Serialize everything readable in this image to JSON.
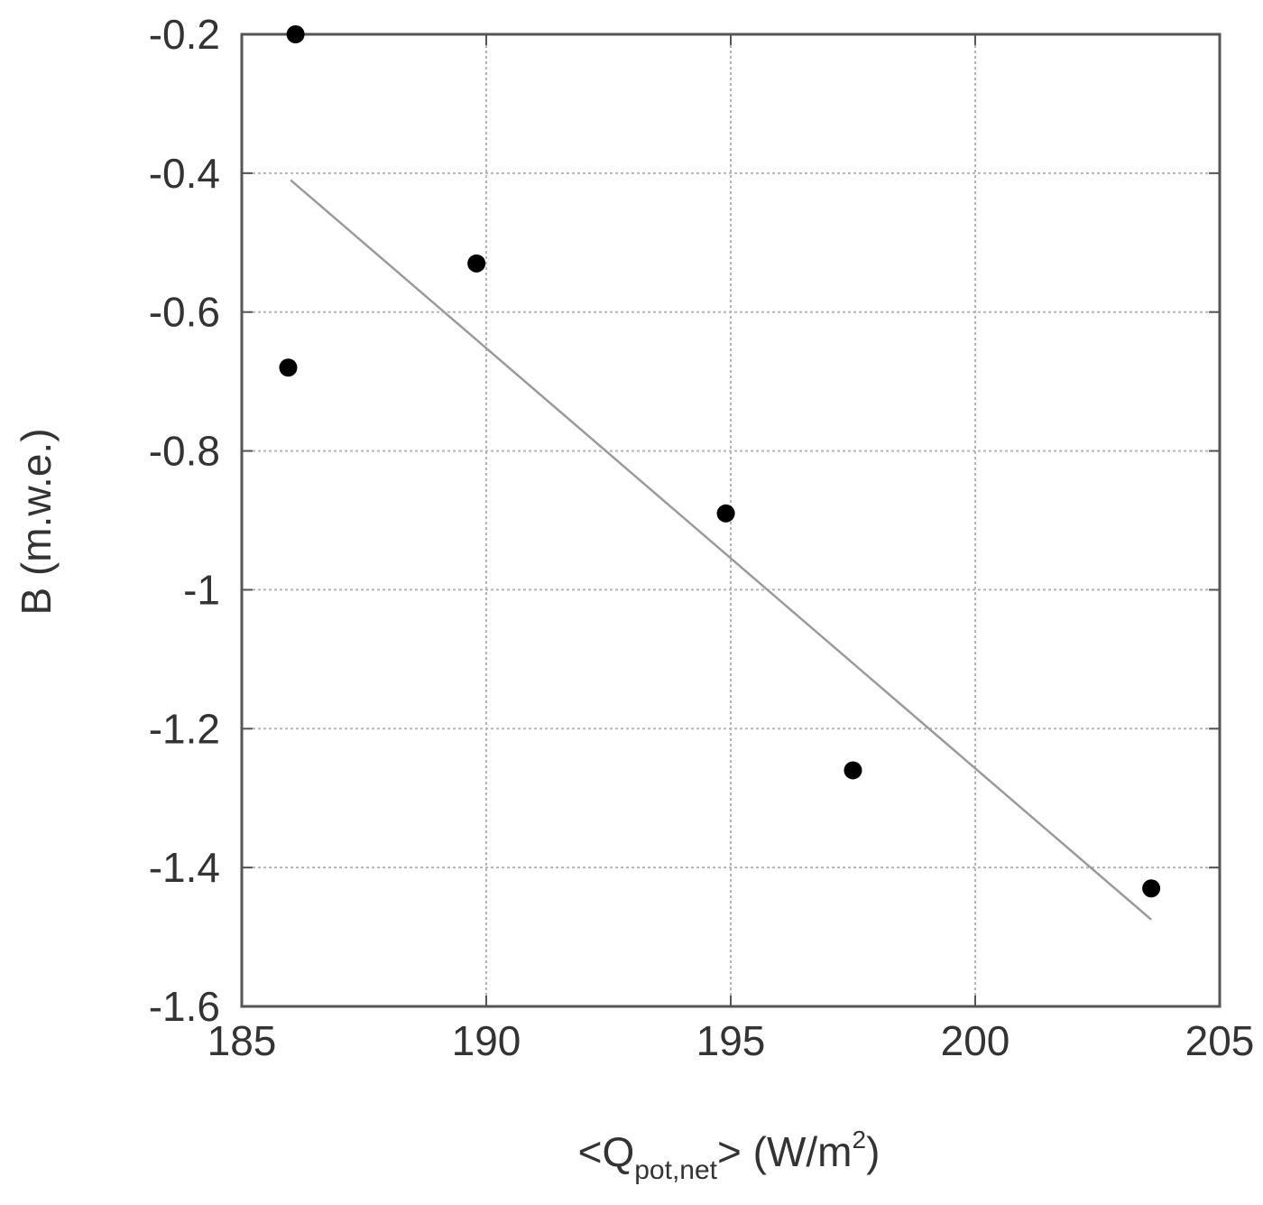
{
  "chart_data": {
    "type": "scatter",
    "title": "",
    "xlabel": {
      "prefix": "<Q",
      "subscript": "pot,net",
      "suffix": "> (W/m",
      "superscript": "2",
      "close": ")"
    },
    "ylabel": "B (m.w.e.)",
    "xlim": [
      185,
      205
    ],
    "ylim": [
      -1.6,
      -0.2
    ],
    "x_ticks": [
      185,
      190,
      195,
      200,
      205
    ],
    "x_tick_labels": [
      "185",
      "190",
      "195",
      "200",
      "205"
    ],
    "y_ticks": [
      -0.2,
      -0.4,
      -0.6,
      -0.8,
      -1.0,
      -1.2,
      -1.4,
      -1.6
    ],
    "y_tick_labels": [
      "-0.2",
      "-0.4",
      "-0.6",
      "-0.8",
      "-1",
      "-1.2",
      "-1.4",
      "-1.6"
    ],
    "grid": true,
    "series": [
      {
        "points": [
          {
            "x": 186.1,
            "y": -0.2
          },
          {
            "x": 185.95,
            "y": -0.68
          },
          {
            "x": 189.8,
            "y": -0.53
          },
          {
            "x": 194.9,
            "y": -0.89
          },
          {
            "x": 197.5,
            "y": -1.26
          },
          {
            "x": 203.6,
            "y": -1.43
          }
        ]
      }
    ],
    "fit_line": {
      "x": [
        186.0,
        203.6
      ],
      "y": [
        -0.41,
        -1.475
      ]
    }
  }
}
